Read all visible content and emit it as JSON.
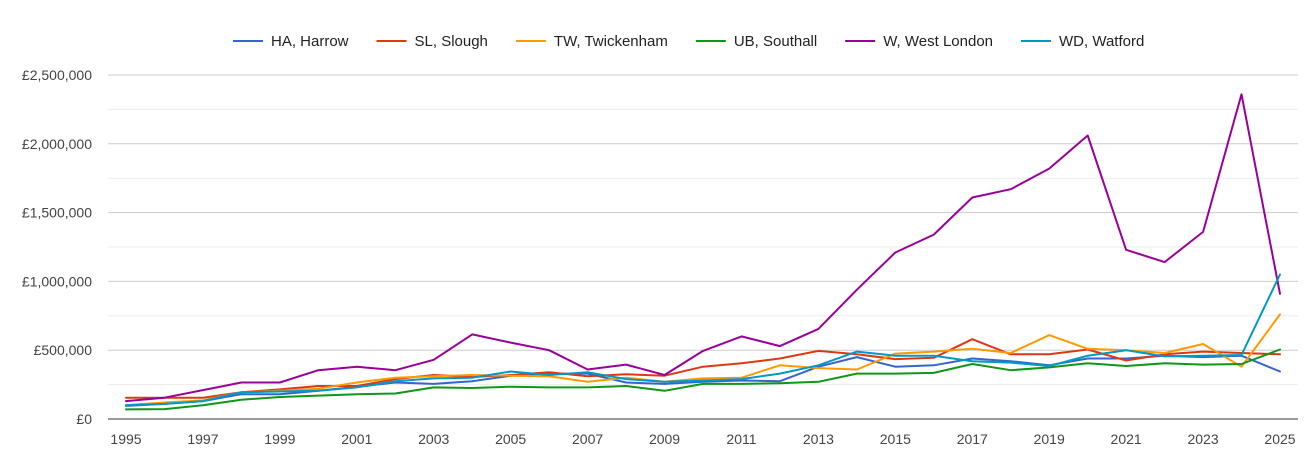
{
  "chart_data": {
    "type": "line",
    "title": "",
    "xlabel": "",
    "ylabel": "",
    "x": [
      1995,
      1996,
      1997,
      1998,
      1999,
      2000,
      2001,
      2002,
      2003,
      2004,
      2005,
      2006,
      2007,
      2008,
      2009,
      2010,
      2011,
      2012,
      2013,
      2014,
      2015,
      2016,
      2017,
      2018,
      2019,
      2020,
      2021,
      2022,
      2023,
      2024,
      2025
    ],
    "xlim": [
      1995,
      2025
    ],
    "ylim": [
      0,
      2500000
    ],
    "x_ticks": [
      "1995",
      "1997",
      "1999",
      "2001",
      "2003",
      "2005",
      "2007",
      "2009",
      "2011",
      "2013",
      "2015",
      "2017",
      "2019",
      "2021",
      "2023",
      "2025"
    ],
    "y_ticks": [
      {
        "value": 0,
        "label": "£0"
      },
      {
        "value": 500000,
        "label": "£500,000"
      },
      {
        "value": 1000000,
        "label": "£1,000,000"
      },
      {
        "value": 1500000,
        "label": "£1,500,000"
      },
      {
        "value": 2000000,
        "label": "£2,000,000"
      },
      {
        "value": 2500000,
        "label": "£2,500,000"
      }
    ],
    "grid": true,
    "legend_position": "top",
    "series": [
      {
        "name": "HA, Harrow",
        "color": "#3366cc",
        "values": [
          95000,
          110000,
          130000,
          180000,
          180000,
          205000,
          235000,
          265000,
          255000,
          275000,
          315000,
          330000,
          330000,
          265000,
          255000,
          270000,
          280000,
          275000,
          380000,
          450000,
          380000,
          390000,
          440000,
          420000,
          390000,
          440000,
          440000,
          460000,
          450000,
          460000,
          345000
        ]
      },
      {
        "name": "SL, Slough",
        "color": "#dc3912",
        "values": [
          155000,
          155000,
          155000,
          195000,
          215000,
          240000,
          240000,
          290000,
          320000,
          305000,
          320000,
          340000,
          310000,
          325000,
          315000,
          380000,
          405000,
          440000,
          495000,
          470000,
          435000,
          445000,
          580000,
          470000,
          470000,
          505000,
          425000,
          470000,
          490000,
          480000,
          470000
        ]
      },
      {
        "name": "TW, Twickenham",
        "color": "#ff9900",
        "values": [
          100000,
          120000,
          135000,
          195000,
          205000,
          220000,
          265000,
          300000,
          310000,
          320000,
          315000,
          310000,
          270000,
          300000,
          270000,
          295000,
          300000,
          390000,
          370000,
          360000,
          475000,
          490000,
          510000,
          480000,
          610000,
          510000,
          500000,
          480000,
          545000,
          380000,
          760000
        ]
      },
      {
        "name": "UB, Southall",
        "color": "#109618",
        "values": [
          70000,
          72000,
          100000,
          140000,
          160000,
          170000,
          180000,
          185000,
          230000,
          225000,
          235000,
          230000,
          230000,
          240000,
          205000,
          255000,
          255000,
          260000,
          270000,
          330000,
          330000,
          335000,
          400000,
          355000,
          375000,
          405000,
          385000,
          405000,
          395000,
          400000,
          505000
        ]
      },
      {
        "name": "W, West London",
        "color": "#990099",
        "values": [
          130000,
          155000,
          210000,
          265000,
          265000,
          355000,
          380000,
          355000,
          430000,
          615000,
          555000,
          500000,
          360000,
          395000,
          320000,
          495000,
          600000,
          530000,
          655000,
          940000,
          1210000,
          1340000,
          1610000,
          1670000,
          1820000,
          2060000,
          1230000,
          1140000,
          1360000,
          2360000,
          910000
        ]
      },
      {
        "name": "WD, Watford",
        "color": "#0099c6",
        "values": [
          100000,
          110000,
          130000,
          195000,
          200000,
          205000,
          230000,
          275000,
          295000,
          300000,
          345000,
          320000,
          340000,
          290000,
          270000,
          280000,
          290000,
          330000,
          390000,
          490000,
          460000,
          460000,
          420000,
          410000,
          385000,
          460000,
          500000,
          455000,
          460000,
          465000,
          1050000
        ]
      }
    ]
  }
}
